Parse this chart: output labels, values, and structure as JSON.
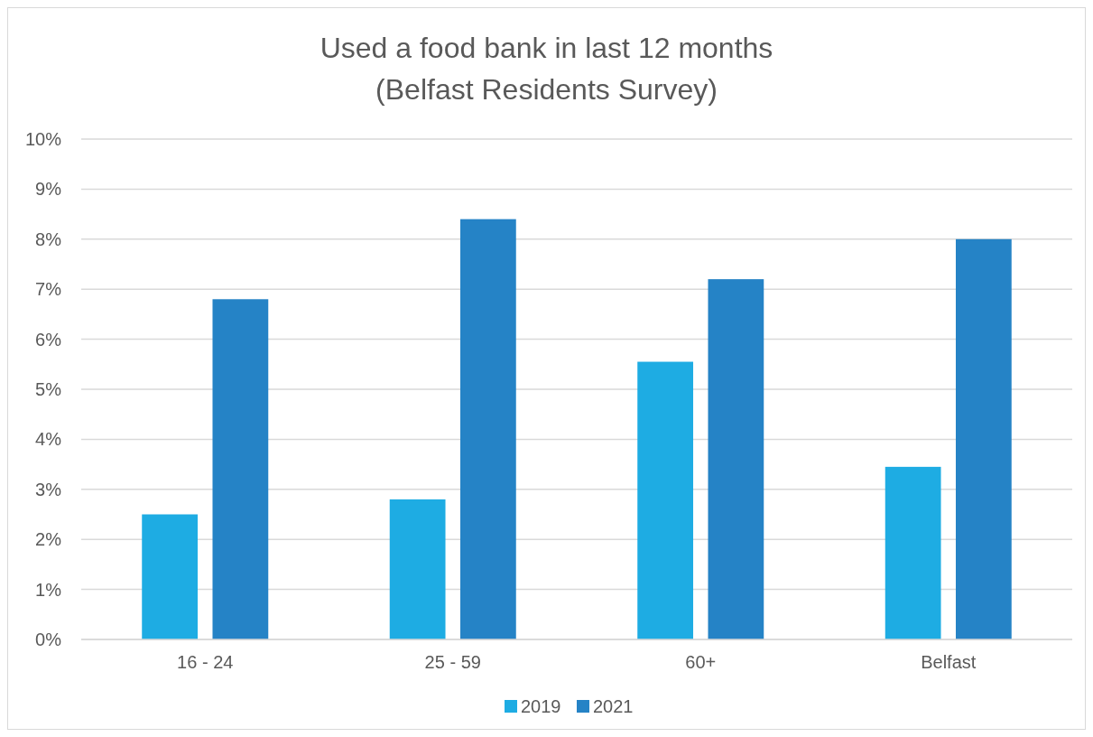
{
  "chart_data": {
    "type": "bar",
    "title": "Used a food bank in last 12 months\n(Belfast Residents Survey)",
    "categories": [
      "16 - 24",
      "25 - 59",
      "60+",
      "Belfast"
    ],
    "series": [
      {
        "name": "2019",
        "color": "#1eace3",
        "values": [
          2.5,
          2.8,
          5.55,
          3.45
        ]
      },
      {
        "name": "2021",
        "color": "#2583c6",
        "values": [
          6.8,
          8.4,
          7.2,
          8.0
        ]
      }
    ],
    "ylim": [
      0,
      10
    ],
    "yticks": [
      {
        "value": 0,
        "label": "0%"
      },
      {
        "value": 1,
        "label": "1%"
      },
      {
        "value": 2,
        "label": "2%"
      },
      {
        "value": 3,
        "label": "3%"
      },
      {
        "value": 4,
        "label": "4%"
      },
      {
        "value": 5,
        "label": "5%"
      },
      {
        "value": 6,
        "label": "6%"
      },
      {
        "value": 7,
        "label": "7%"
      },
      {
        "value": 8,
        "label": "8%"
      },
      {
        "value": 9,
        "label": "9%"
      },
      {
        "value": 10,
        "label": "10%"
      }
    ],
    "grid": "y",
    "legend": "bottom"
  }
}
